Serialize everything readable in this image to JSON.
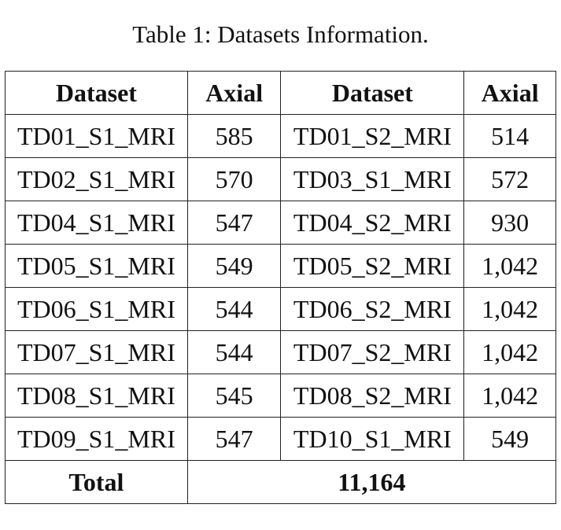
{
  "title": "Table 1: Datasets Information.",
  "table": {
    "header": [
      "Dataset",
      "Axial",
      "Dataset",
      "Axial"
    ],
    "rows": [
      [
        "TD01_S1_MRI",
        "585",
        "TD01_S2_MRI",
        "514"
      ],
      [
        "TD02_S1_MRI",
        "570",
        "TD03_S1_MRI",
        "572"
      ],
      [
        "TD04_S1_MRI",
        "547",
        "TD04_S2_MRI",
        "930"
      ],
      [
        "TD05_S1_MRI",
        "549",
        "TD05_S2_MRI",
        "1,042"
      ],
      [
        "TD06_S1_MRI",
        "544",
        "TD06_S2_MRI",
        "1,042"
      ],
      [
        "TD07_S1_MRI",
        "544",
        "TD07_S2_MRI",
        "1,042"
      ],
      [
        "TD08_S1_MRI",
        "545",
        "TD08_S2_MRI",
        "1,042"
      ],
      [
        "TD09_S1_MRI",
        "547",
        "TD10_S1_MRI",
        "549"
      ]
    ],
    "total": [
      "Total",
      "11,164"
    ]
  }
}
